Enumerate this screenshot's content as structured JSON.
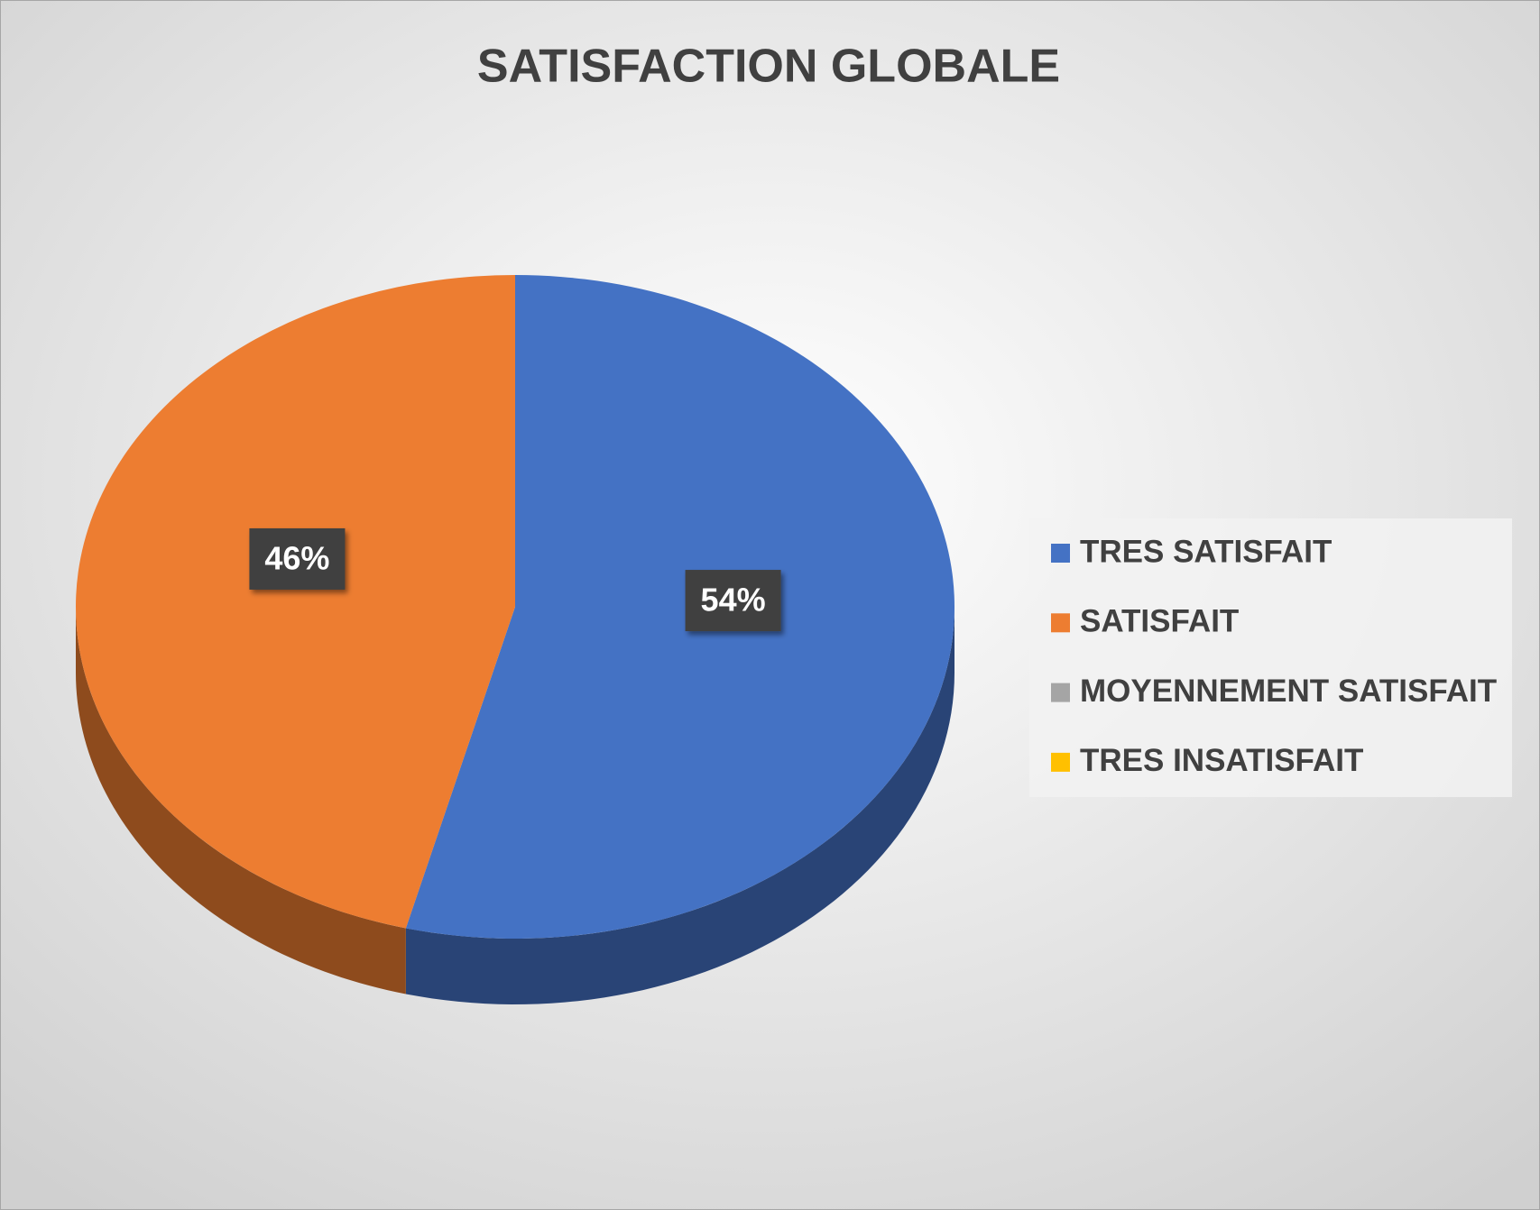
{
  "chart_data": {
    "type": "pie",
    "title": "SATISFACTION GLOBALE",
    "categories": [
      "TRES SATISFAIT",
      "SATISFAIT",
      "MOYENNEMENT SATISFAIT",
      "TRES INSATISFAIT"
    ],
    "values": [
      54,
      46,
      0,
      0
    ],
    "value_labels": [
      "54%",
      "46%",
      null,
      null
    ],
    "colors": [
      "#4472c4",
      "#ed7d31",
      "#a5a5a5",
      "#ffc000"
    ],
    "legend": "right"
  }
}
